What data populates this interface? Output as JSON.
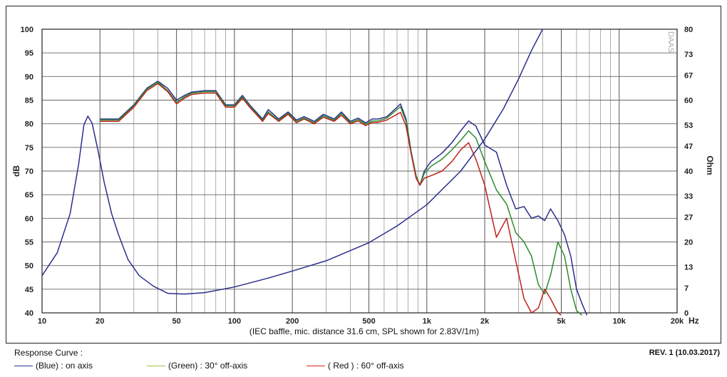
{
  "chart_data": {
    "type": "line",
    "xlabel": "(IEC baffle, mic. distance 31.6 cm, SPL shown for 2.83V/1m)",
    "x_scale": "log",
    "xlim": [
      10,
      20000
    ],
    "x_ticks": [
      {
        "v": 10,
        "label": "10"
      },
      {
        "v": 20,
        "label": "20"
      },
      {
        "v": 50,
        "label": "50"
      },
      {
        "v": 100,
        "label": "100"
      },
      {
        "v": 200,
        "label": "200"
      },
      {
        "v": 500,
        "label": "500"
      },
      {
        "v": 1000,
        "label": "1k"
      },
      {
        "v": 2000,
        "label": "2k"
      },
      {
        "v": 5000,
        "label": "5k"
      },
      {
        "v": 10000,
        "label": "10k"
      },
      {
        "v": 20000,
        "label": "20k"
      }
    ],
    "x_unit": "Hz",
    "ylabel_left": "dB",
    "ylim_left": [
      40,
      100
    ],
    "y_ticks_left": [
      40,
      45,
      50,
      55,
      60,
      65,
      70,
      75,
      80,
      85,
      90,
      95,
      100
    ],
    "ylabel_right": "Ohm",
    "ylim_right": [
      0,
      80
    ],
    "y_ticks_right": [
      0,
      7,
      13,
      20,
      27,
      33,
      40,
      47,
      53,
      60,
      67,
      73,
      80
    ],
    "grid": true,
    "legend_title": "Response Curve :",
    "series": [
      {
        "name": "(Blue)  : on axis",
        "color": "#2b2f8c",
        "axis": "left",
        "points": [
          [
            20,
            81
          ],
          [
            25,
            81
          ],
          [
            30,
            84
          ],
          [
            35,
            87.5
          ],
          [
            40,
            89
          ],
          [
            45,
            87.5
          ],
          [
            50,
            85
          ],
          [
            55,
            86
          ],
          [
            60,
            86.7
          ],
          [
            70,
            87
          ],
          [
            80,
            87
          ],
          [
            90,
            84
          ],
          [
            100,
            84
          ],
          [
            110,
            86
          ],
          [
            120,
            84
          ],
          [
            140,
            81
          ],
          [
            150,
            83
          ],
          [
            170,
            81
          ],
          [
            190,
            82.5
          ],
          [
            210,
            80.8
          ],
          [
            230,
            81.5
          ],
          [
            260,
            80.5
          ],
          [
            290,
            82
          ],
          [
            330,
            81
          ],
          [
            360,
            82.5
          ],
          [
            400,
            80.5
          ],
          [
            440,
            81.2
          ],
          [
            480,
            80.2
          ],
          [
            520,
            81
          ],
          [
            560,
            81
          ],
          [
            620,
            81.5
          ],
          [
            680,
            83
          ],
          [
            730,
            84.2
          ],
          [
            780,
            81
          ],
          [
            830,
            74
          ],
          [
            880,
            69
          ],
          [
            920,
            67
          ],
          [
            970,
            70
          ],
          [
            1050,
            72
          ],
          [
            1200,
            73.8
          ],
          [
            1350,
            76
          ],
          [
            1500,
            78.5
          ],
          [
            1650,
            80.6
          ],
          [
            1800,
            79.5
          ],
          [
            2000,
            75.5
          ],
          [
            2300,
            74
          ],
          [
            2600,
            67
          ],
          [
            2900,
            62
          ],
          [
            3200,
            62.5
          ],
          [
            3500,
            60
          ],
          [
            3800,
            60.5
          ],
          [
            4100,
            59.5
          ],
          [
            4400,
            62
          ],
          [
            4800,
            59.5
          ],
          [
            5200,
            56.5
          ],
          [
            5600,
            52
          ],
          [
            6000,
            45
          ],
          [
            6400,
            42
          ],
          [
            6800,
            39.5
          ]
        ]
      },
      {
        "name": "(Green) : 30° off-axis",
        "color": "#2e8b2e",
        "axis": "left",
        "points": [
          [
            20,
            80.8
          ],
          [
            25,
            80.8
          ],
          [
            30,
            83.8
          ],
          [
            35,
            87.3
          ],
          [
            40,
            88.8
          ],
          [
            45,
            87
          ],
          [
            50,
            84.5
          ],
          [
            55,
            85.7
          ],
          [
            60,
            86.5
          ],
          [
            70,
            86.8
          ],
          [
            80,
            86.8
          ],
          [
            90,
            83.8
          ],
          [
            100,
            83.8
          ],
          [
            110,
            85.7
          ],
          [
            120,
            83.8
          ],
          [
            140,
            80.7
          ],
          [
            150,
            82.5
          ],
          [
            170,
            80.7
          ],
          [
            190,
            82.2
          ],
          [
            210,
            80.5
          ],
          [
            230,
            81.2
          ],
          [
            260,
            80.2
          ],
          [
            290,
            81.7
          ],
          [
            330,
            80.7
          ],
          [
            360,
            82.2
          ],
          [
            400,
            80.2
          ],
          [
            440,
            80.9
          ],
          [
            480,
            79.9
          ],
          [
            520,
            80.6
          ],
          [
            560,
            80.6
          ],
          [
            620,
            81.2
          ],
          [
            680,
            82.6
          ],
          [
            730,
            83.6
          ],
          [
            780,
            80.5
          ],
          [
            830,
            73.8
          ],
          [
            880,
            69
          ],
          [
            920,
            67
          ],
          [
            970,
            69.5
          ],
          [
            1050,
            71
          ],
          [
            1200,
            72.5
          ],
          [
            1350,
            74.5
          ],
          [
            1500,
            76.5
          ],
          [
            1650,
            78.5
          ],
          [
            1800,
            77
          ],
          [
            2000,
            72
          ],
          [
            2300,
            66
          ],
          [
            2600,
            63
          ],
          [
            2900,
            57
          ],
          [
            3200,
            55
          ],
          [
            3500,
            52
          ],
          [
            3800,
            46
          ],
          [
            4100,
            44
          ],
          [
            4400,
            48
          ],
          [
            4800,
            55
          ],
          [
            5200,
            52
          ],
          [
            5600,
            45
          ],
          [
            6000,
            40.5
          ],
          [
            6400,
            39.5
          ]
        ]
      },
      {
        "name": "( Red )  : 60° off-axis",
        "color": "#c0221c",
        "axis": "left",
        "points": [
          [
            20,
            80.5
          ],
          [
            25,
            80.5
          ],
          [
            30,
            83.5
          ],
          [
            35,
            87
          ],
          [
            40,
            88.5
          ],
          [
            45,
            86.8
          ],
          [
            50,
            84.2
          ],
          [
            55,
            85.4
          ],
          [
            60,
            86.2
          ],
          [
            70,
            86.5
          ],
          [
            80,
            86.5
          ],
          [
            90,
            83.5
          ],
          [
            100,
            83.5
          ],
          [
            110,
            85.4
          ],
          [
            120,
            83.5
          ],
          [
            140,
            80.5
          ],
          [
            150,
            82.2
          ],
          [
            170,
            80.5
          ],
          [
            190,
            82
          ],
          [
            210,
            80.2
          ],
          [
            230,
            81
          ],
          [
            260,
            80
          ],
          [
            290,
            81.4
          ],
          [
            330,
            80.5
          ],
          [
            360,
            81.8
          ],
          [
            400,
            80
          ],
          [
            440,
            80.6
          ],
          [
            480,
            79.6
          ],
          [
            520,
            80.3
          ],
          [
            560,
            80.3
          ],
          [
            620,
            80.8
          ],
          [
            680,
            81.7
          ],
          [
            730,
            82.4
          ],
          [
            780,
            79.5
          ],
          [
            830,
            73.5
          ],
          [
            880,
            68.5
          ],
          [
            920,
            67
          ],
          [
            970,
            68.5
          ],
          [
            1050,
            69
          ],
          [
            1200,
            70
          ],
          [
            1350,
            72
          ],
          [
            1500,
            74.5
          ],
          [
            1650,
            76
          ],
          [
            1800,
            72.5
          ],
          [
            2000,
            67
          ],
          [
            2300,
            56
          ],
          [
            2600,
            60
          ],
          [
            2900,
            51
          ],
          [
            3200,
            43
          ],
          [
            3500,
            40
          ],
          [
            3800,
            41
          ],
          [
            4100,
            45
          ],
          [
            4400,
            43
          ],
          [
            4800,
            40
          ],
          [
            5000,
            39.5
          ]
        ]
      },
      {
        "name": "Impedance",
        "color": "#2b2f8c",
        "axis": "right",
        "points": [
          [
            10,
            10.5
          ],
          [
            12,
            17
          ],
          [
            14,
            28
          ],
          [
            15.5,
            42
          ],
          [
            16.5,
            53
          ],
          [
            17.3,
            55.5
          ],
          [
            18.2,
            53.5
          ],
          [
            19.5,
            46
          ],
          [
            21,
            37
          ],
          [
            23,
            28
          ],
          [
            25,
            22
          ],
          [
            28,
            15
          ],
          [
            32,
            10.5
          ],
          [
            38,
            7.5
          ],
          [
            45,
            5.5
          ],
          [
            55,
            5.3
          ],
          [
            70,
            5.7
          ],
          [
            100,
            7.3
          ],
          [
            150,
            9.8
          ],
          [
            200,
            11.8
          ],
          [
            300,
            14.7
          ],
          [
            500,
            19.8
          ],
          [
            700,
            24.5
          ],
          [
            1000,
            30.5
          ],
          [
            1500,
            40
          ],
          [
            2000,
            49
          ],
          [
            2500,
            57.5
          ],
          [
            3000,
            66
          ],
          [
            3500,
            74
          ],
          [
            4000,
            80
          ]
        ]
      }
    ]
  },
  "legend": {
    "title": "Response Curve :",
    "items": [
      {
        "label": "(Blue)  : on axis",
        "color": "#2b2f8c"
      },
      {
        "label": "(Green) : 30° off-axis",
        "color": "#9ac33a"
      },
      {
        "label": "( Red )  : 60° off-axis",
        "color": "#e2241c"
      }
    ]
  },
  "watermark": "DAAS",
  "revision": "REV. 1 (10.03.2017)"
}
